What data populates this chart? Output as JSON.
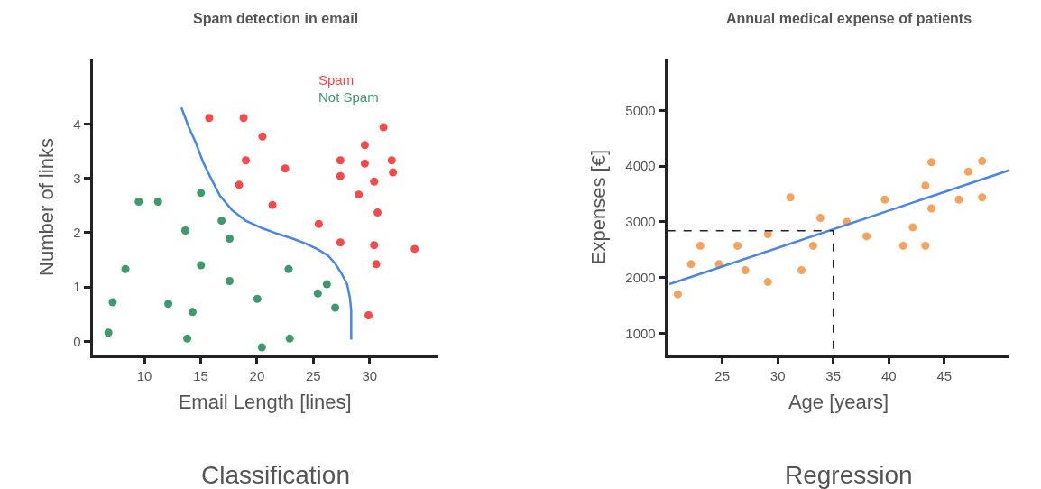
{
  "chart_data": [
    {
      "type": "scatter",
      "title": "Spam detection in email",
      "xlabel": "Email Length [lines]",
      "ylabel": "Number of links",
      "annotations": [
        "Classification"
      ],
      "marker": "circle",
      "xlim": [
        5.4,
        36
      ],
      "ylim": [
        -0.26,
        5.2
      ],
      "xticks": [
        10,
        15,
        20,
        25,
        30
      ],
      "yticks": [
        0,
        1,
        2,
        3,
        4
      ],
      "series": [
        {
          "name": "Spam",
          "color": "#f44a4a",
          "x": [
            15.75,
            18.81,
            20.48,
            19.0,
            22.5,
            18.41,
            21.37,
            25.48,
            27.4,
            27.4,
            29.57,
            29.57,
            31.23,
            31.96,
            32.07,
            30.4,
            29.03,
            30.7,
            27.4,
            30.4,
            34.0,
            30.59,
            29.9
          ],
          "values": [
            4.11,
            4.11,
            3.77,
            3.33,
            3.18,
            2.88,
            2.51,
            2.16,
            3.33,
            3.04,
            3.61,
            3.27,
            3.94,
            3.33,
            3.11,
            2.94,
            2.7,
            2.37,
            1.82,
            1.77,
            1.7,
            1.42,
            0.48
          ]
        },
        {
          "name": "Not Spam",
          "color": "#3c9a6c",
          "x": [
            9.49,
            11.21,
            15.02,
            16.85,
            13.63,
            17.56,
            8.31,
            15.02,
            22.8,
            17.56,
            26.2,
            25.4,
            20.02,
            7.18,
            12.12,
            14.27,
            26.94,
            6.8,
            13.8,
            20.43,
            22.9
          ],
          "values": [
            2.57,
            2.57,
            2.73,
            2.22,
            2.04,
            1.89,
            1.33,
            1.4,
            1.33,
            1.11,
            1.05,
            0.88,
            0.78,
            0.72,
            0.69,
            0.54,
            0.62,
            0.16,
            0.05,
            -0.11,
            0.05
          ]
        },
        {
          "type": "line",
          "marker": "none",
          "color": "#4a86e8",
          "x": [
            13.28,
            13.9,
            14.57,
            15.2,
            15.91,
            16.7,
            17.8,
            19.0,
            20.48,
            21.8,
            23.17,
            24.3,
            25.32,
            26.3,
            26.94,
            27.5,
            28.0,
            28.25,
            28.36,
            28.36
          ],
          "values": [
            4.3,
            3.96,
            3.65,
            3.3,
            3.0,
            2.68,
            2.41,
            2.22,
            2.08,
            1.98,
            1.89,
            1.8,
            1.7,
            1.58,
            1.43,
            1.25,
            1.05,
            0.8,
            0.56,
            0.03
          ]
        }
      ]
    },
    {
      "type": "scatter",
      "title": "Annual medical expense of patients",
      "xlabel": "Age [years]",
      "ylabel": "Expenses [€]",
      "annotations": [
        "Regression"
      ],
      "marker": "circle",
      "xlim": [
        20.05,
        50.9
      ],
      "ylim": [
        600,
        5930
      ],
      "xticks": [
        25,
        30,
        35,
        40,
        45
      ],
      "yticks": [
        1000,
        2000,
        3000,
        4000,
        5000
      ],
      "series": [
        {
          "color": "#f5a35c",
          "x": [
            21.0,
            22.19,
            23.03,
            24.7,
            26.38,
            27.08,
            29.11,
            29.11,
            31.14,
            32.14,
            33.19,
            33.84,
            36.22,
            38.0,
            39.65,
            41.3,
            42.16,
            43.3,
            43.3,
            43.84,
            43.84,
            46.32,
            47.16,
            48.41,
            48.41
          ],
          "values": [
            1700,
            2240,
            2570,
            2240,
            2570,
            2130,
            1920,
            2780,
            3440,
            2130,
            2570,
            3070,
            3000,
            2740,
            3400,
            2570,
            2900,
            2570,
            3650,
            4070,
            3240,
            3400,
            3900,
            4090,
            3440
          ]
        },
        {
          "type": "line",
          "marker": "none",
          "color": "#4a86e8",
          "x": [
            20.24,
            50.9
          ],
          "values": [
            1880,
            3930
          ]
        },
        {
          "type": "line",
          "marker": "none",
          "color": "#222222",
          "line_style": "dashed",
          "x": [
            20.05,
            35,
            35
          ],
          "values": [
            2840,
            2840,
            600
          ]
        }
      ]
    }
  ]
}
